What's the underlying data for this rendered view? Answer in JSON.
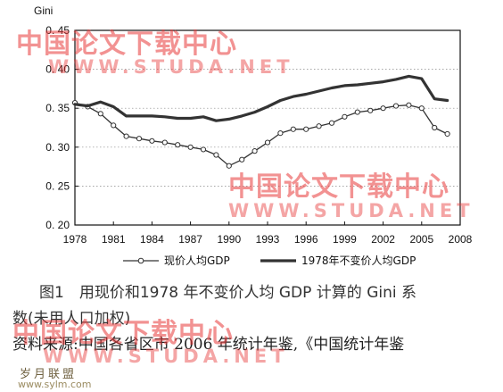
{
  "chart_data": {
    "type": "line",
    "ylabel": "Gini",
    "xlim": [
      1978,
      2008
    ],
    "ylim": [
      0.2,
      0.45
    ],
    "x_ticks": [
      1978,
      1981,
      1984,
      1987,
      1990,
      1993,
      1996,
      1999,
      2002,
      2005,
      2008
    ],
    "x_tick_labels": [
      "1978",
      "1981",
      "1984",
      "1987",
      "1990",
      "1993",
      "1996",
      "1999",
      "2002",
      "2005",
      "2008"
    ],
    "y_ticks": [
      0.2,
      0.25,
      0.3,
      0.35,
      0.4,
      0.45
    ],
    "y_tick_labels": [
      "0. 20",
      "0. 25",
      "0. 30",
      "0. 35",
      "0. 40",
      "0. 45"
    ],
    "grid": true,
    "legend_position": "bottom",
    "series": [
      {
        "name": "现价人均GDP",
        "style": "line-with-open-circles",
        "color": "#333333",
        "x": [
          1978,
          1979,
          1980,
          1981,
          1982,
          1983,
          1984,
          1985,
          1986,
          1987,
          1988,
          1989,
          1990,
          1991,
          1992,
          1993,
          1994,
          1995,
          1996,
          1997,
          1998,
          1999,
          2000,
          2001,
          2002,
          2003,
          2004,
          2005,
          2006,
          2007
        ],
        "values": [
          0.357,
          0.352,
          0.343,
          0.328,
          0.314,
          0.311,
          0.308,
          0.306,
          0.303,
          0.3,
          0.297,
          0.29,
          0.276,
          0.284,
          0.295,
          0.306,
          0.318,
          0.323,
          0.323,
          0.327,
          0.331,
          0.339,
          0.345,
          0.347,
          0.35,
          0.353,
          0.354,
          0.35,
          0.325,
          0.317
        ]
      },
      {
        "name": "1978年不变价人均GDP",
        "style": "thick-line",
        "color": "#333333",
        "x": [
          1978,
          1979,
          1980,
          1981,
          1982,
          1983,
          1984,
          1985,
          1986,
          1987,
          1988,
          1989,
          1990,
          1991,
          1992,
          1993,
          1994,
          1995,
          1996,
          1997,
          1998,
          1999,
          2000,
          2001,
          2002,
          2003,
          2004,
          2005,
          2006,
          2007
        ],
        "values": [
          0.355,
          0.353,
          0.358,
          0.352,
          0.34,
          0.34,
          0.34,
          0.339,
          0.337,
          0.337,
          0.339,
          0.334,
          0.336,
          0.34,
          0.345,
          0.352,
          0.36,
          0.365,
          0.368,
          0.372,
          0.376,
          0.379,
          0.38,
          0.382,
          0.384,
          0.387,
          0.391,
          0.388,
          0.362,
          0.36
        ]
      }
    ]
  },
  "caption": {
    "line1": "图1　用现价和1978 年不变价人均 GDP 计算的 Gini 系",
    "line2": "数(未用人口加权)"
  },
  "source": {
    "line": "资料来源:中国各省区市 2006 年统计年鉴,《中国统计年鉴"
  },
  "watermark": {
    "cn": "中国论文下载中心",
    "en": "WWW.STUDA.NET",
    "small_cn": "岁月联盟",
    "small_url": "www.sylm.com"
  },
  "colors": {
    "watermark": "#e83a3a",
    "series": "#333333"
  }
}
